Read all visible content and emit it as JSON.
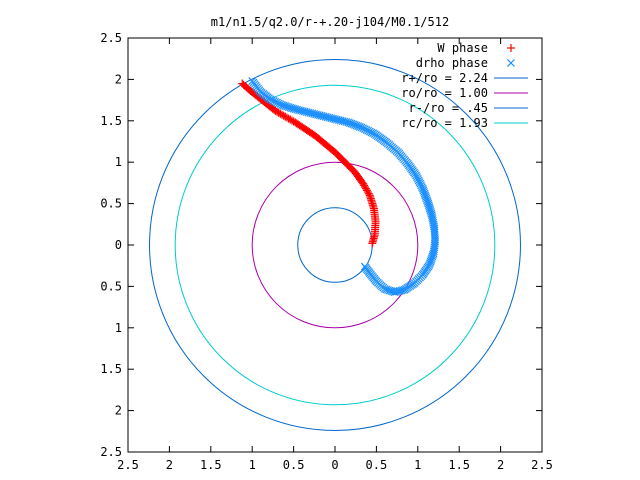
{
  "chart_data": {
    "type": "scatter",
    "title": "m1/n1.5/q2.0/r-+.20-j104/M0.1/512",
    "xlabel": "",
    "ylabel": "",
    "xlim": [
      -2.5,
      2.5
    ],
    "ylim": [
      -2.5,
      2.5
    ],
    "x_ticks": [
      -2.5,
      -2,
      -1.5,
      -1,
      -0.5,
      0,
      0.5,
      1,
      1.5,
      2,
      2.5
    ],
    "x_tick_labels": [
      "2.5",
      "2",
      "1.5",
      "1",
      "0.5",
      "0",
      "0.5",
      "1",
      "1.5",
      "2",
      "2.5"
    ],
    "y_ticks": [
      2.5,
      2,
      1.5,
      1,
      0.5,
      0,
      -0.5,
      -1,
      -1.5,
      -2,
      -2.5
    ],
    "y_tick_labels": [
      "2.5",
      "2",
      "1.5",
      "1",
      "0.5",
      "0",
      "0.5",
      "1",
      "1.5",
      "2",
      "2.5"
    ],
    "grid": false,
    "legend_position": "top-right",
    "series": [
      {
        "name": "W phase",
        "kind": "points",
        "marker": "plus",
        "color": "#ff0000",
        "points": [
          [
            -1.12,
            1.95
          ],
          [
            -1.02,
            1.86
          ],
          [
            -0.92,
            1.78
          ],
          [
            -0.82,
            1.7
          ],
          [
            -0.72,
            1.62
          ],
          [
            -0.6,
            1.55
          ],
          [
            -0.48,
            1.48
          ],
          [
            -0.36,
            1.4
          ],
          [
            -0.24,
            1.32
          ],
          [
            -0.12,
            1.22
          ],
          [
            0.0,
            1.12
          ],
          [
            0.12,
            1.0
          ],
          [
            0.24,
            0.88
          ],
          [
            0.34,
            0.74
          ],
          [
            0.42,
            0.6
          ],
          [
            0.47,
            0.44
          ],
          [
            0.49,
            0.28
          ],
          [
            0.48,
            0.12
          ],
          [
            0.45,
            0.02
          ]
        ]
      },
      {
        "name": "drho phase",
        "kind": "points",
        "marker": "cross",
        "color": "#1e90ff",
        "points": [
          [
            -1.0,
            1.98
          ],
          [
            -0.9,
            1.85
          ],
          [
            -0.78,
            1.76
          ],
          [
            -0.64,
            1.69
          ],
          [
            -0.48,
            1.64
          ],
          [
            -0.32,
            1.6
          ],
          [
            -0.16,
            1.56
          ],
          [
            0.0,
            1.52
          ],
          [
            0.16,
            1.48
          ],
          [
            0.32,
            1.42
          ],
          [
            0.48,
            1.34
          ],
          [
            0.62,
            1.24
          ],
          [
            0.76,
            1.12
          ],
          [
            0.88,
            0.98
          ],
          [
            0.98,
            0.84
          ],
          [
            1.06,
            0.68
          ],
          [
            1.12,
            0.52
          ],
          [
            1.17,
            0.36
          ],
          [
            1.2,
            0.2
          ],
          [
            1.21,
            0.04
          ],
          [
            1.19,
            -0.1
          ],
          [
            1.14,
            -0.24
          ],
          [
            1.06,
            -0.36
          ],
          [
            0.96,
            -0.46
          ],
          [
            0.84,
            -0.54
          ],
          [
            0.72,
            -0.57
          ],
          [
            0.6,
            -0.53
          ],
          [
            0.5,
            -0.44
          ],
          [
            0.42,
            -0.34
          ],
          [
            0.36,
            -0.26
          ]
        ]
      },
      {
        "name": "r+/ro = 2.24",
        "kind": "circle",
        "radius": 2.24,
        "color": "#0066cc"
      },
      {
        "name": "ro/ro = 1.00",
        "kind": "circle",
        "radius": 1.0,
        "color": "#aa00aa"
      },
      {
        "name": "r-/ro = .45",
        "kind": "circle",
        "radius": 0.45,
        "color": "#0066cc"
      },
      {
        "name": "rc/ro = 1.93",
        "kind": "circle",
        "radius": 1.93,
        "color": "#00cccc"
      }
    ]
  }
}
